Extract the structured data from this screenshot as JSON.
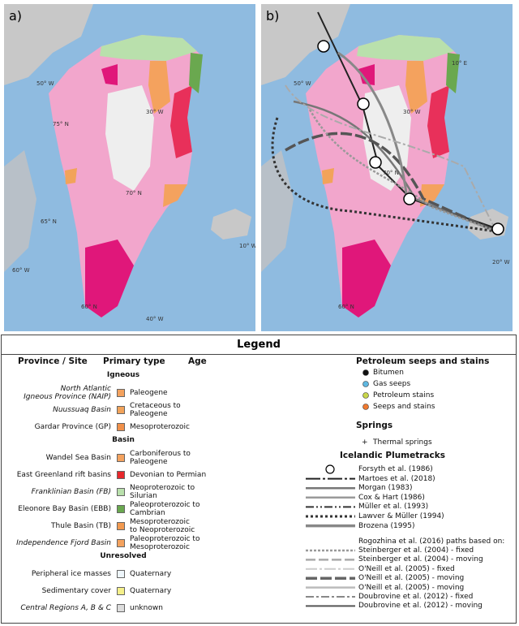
{
  "panels": [
    "a)",
    "b)"
  ],
  "map_labels_a": [
    "75° N",
    "70° N",
    "65° N",
    "60° N",
    "60° W",
    "50° W",
    "40° W",
    "30° W",
    "10° W"
  ],
  "map_labels_b": [
    "70° N",
    "60° N",
    "50° W",
    "30° W",
    "20° W",
    "10° E"
  ],
  "legend": {
    "title": "Legend",
    "headers": [
      "Province / Site",
      "Primary type",
      "Age"
    ],
    "groups": [
      {
        "name": "Igneous",
        "rows": [
          {
            "site": "North Atlantic\nIgneous Province (NAIP)",
            "italic": true,
            "color": "#f4a25e",
            "age": "Paleogene"
          },
          {
            "site": "Nuussuaq Basin",
            "italic": true,
            "color": "#f2a35a",
            "age": "Cretaceous to\nPaleogene"
          },
          {
            "site": "Gardar Province (GP)",
            "italic": false,
            "color": "#f0904a",
            "age": "Mesoproterozoic"
          }
        ]
      },
      {
        "name": "Basin",
        "rows": [
          {
            "site": "Wandel Sea Basin",
            "italic": false,
            "color": "#f4a25e",
            "age": "Carboniferous to\nPaleogene"
          },
          {
            "site": "East Greenland rift basins",
            "italic": false,
            "color": "#e8282c",
            "age": "Devonian to Permian"
          },
          {
            "site": "Franklinian Basin (FB)",
            "italic": true,
            "color": "#b9e0ac",
            "age": "Neoproterozoic to\nSilurian"
          },
          {
            "site": "Eleonore Bay Basin (EBB)",
            "italic": false,
            "color": "#6aa84f",
            "age": "Paleoproterozoic to\nCambrian"
          },
          {
            "site": "Thule Basin (TB)",
            "italic": false,
            "color": "#f29a50",
            "age": "Mesoproterozoic\nto Neoproterozoic"
          },
          {
            "site": "Independence Fjord Basin",
            "italic": true,
            "color": "#f4a25e",
            "age": "Paleoproterozoic to\nMesoproterozoic"
          }
        ]
      },
      {
        "name": "Unresolved",
        "rows": [
          {
            "site": "Peripheral ice masses",
            "italic": false,
            "color": "#eef6fb",
            "age": "Quaternary"
          },
          {
            "site": "Sedimentary cover",
            "italic": false,
            "color": "#f5f08a",
            "age": "Quaternary"
          },
          {
            "site": "Central Regions A, B & C",
            "italic": true,
            "color": "#dddddd",
            "age": "unknown"
          }
        ]
      }
    ],
    "seeps": {
      "title": "Petroleum seeps and stains",
      "items": [
        {
          "label": "Bitumen",
          "color": "#111111"
        },
        {
          "label": "Gas seeps",
          "color": "#5fb7e0"
        },
        {
          "label": "Petroleum stains",
          "color": "#c8d64a"
        },
        {
          "label": "Seeps and stains",
          "color": "#f07a30"
        }
      ]
    },
    "springs": {
      "title": "Springs",
      "items": [
        {
          "label": "Thermal springs",
          "symbol": "+"
        }
      ]
    },
    "plumetracks": {
      "title": "Icelandic Plumetracks",
      "items": [
        {
          "label": "Forsyth et al. (1986)",
          "marker": "circle"
        },
        {
          "label": "Martoes et al. (2018)",
          "stroke": "#222222",
          "width": 2,
          "dash": "18 3 3 3"
        },
        {
          "label": "Morgan (1983)",
          "stroke": "#777777",
          "width": 2.5,
          "dash": ""
        },
        {
          "label": "Cox & Hart (1986)",
          "stroke": "#9a9a9a",
          "width": 2.5,
          "dash": ""
        },
        {
          "label": "Müller et al. (1993)",
          "stroke": "#333333",
          "width": 2,
          "dash": "10 3 2 3 2 3"
        },
        {
          "label": "Lawver & Müller (1994)",
          "stroke": "#333333",
          "width": 3,
          "dash": "3 3"
        },
        {
          "label": "Brozena (1995)",
          "stroke": "#888888",
          "width": 3.5,
          "dash": ""
        }
      ]
    },
    "rogozhina": {
      "title": "Rogozhina et al. (2016) paths based on:",
      "items": [
        {
          "label": "Steinberger et al. (2004) - fixed",
          "stroke": "#999999",
          "width": 2.5,
          "dash": "3 2"
        },
        {
          "label": "Steinberger et al. (2004) - moving",
          "stroke": "#aaaaaa",
          "width": 2.5,
          "dash": "12 4"
        },
        {
          "label": "O'Neill et al. (2005) - fixed",
          "stroke": "#cccccc",
          "width": 2,
          "dash": "14 3 3 3"
        },
        {
          "label": "O'Neill et al. (2005) - moving",
          "stroke": "#666666",
          "width": 3.5,
          "dash": "14 4"
        },
        {
          "label": "O'Neill et al. (2005) - moving",
          "stroke": "#bbbbbb",
          "width": 2.5,
          "dash": ""
        },
        {
          "label": "Doubrovine et al. (2012) - fixed",
          "stroke": "#888888",
          "width": 2,
          "dash": "10 3 3 3"
        },
        {
          "label": "Doubrovine et al. (2012) - moving",
          "stroke": "#555555",
          "width": 2,
          "dash": ""
        }
      ]
    }
  }
}
